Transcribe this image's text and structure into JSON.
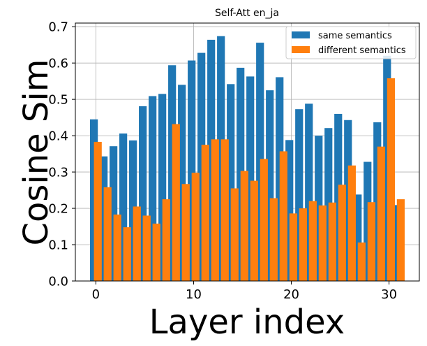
{
  "chart_data": {
    "type": "bar",
    "title": "Self-Att en_ja",
    "xlabel": "Layer index",
    "ylabel": "Cosine Sim",
    "x": [
      0,
      1,
      2,
      3,
      4,
      5,
      6,
      7,
      8,
      9,
      10,
      11,
      12,
      13,
      14,
      15,
      16,
      17,
      18,
      19,
      20,
      21,
      22,
      23,
      24,
      25,
      26,
      27,
      28,
      29,
      30,
      31
    ],
    "xlim": [
      -2.1,
      33.1
    ],
    "ylim": [
      0,
      0.71
    ],
    "xticks": [
      0,
      10,
      20,
      30
    ],
    "yticks": [
      0.0,
      0.1,
      0.2,
      0.3,
      0.4,
      0.5,
      0.6,
      0.7
    ],
    "grid": true,
    "legend_position": "top-right",
    "series": [
      {
        "name": "same semantics",
        "color": "#1f77b4",
        "offset": -0.2,
        "values": [
          0.445,
          0.343,
          0.371,
          0.406,
          0.387,
          0.481,
          0.509,
          0.515,
          0.594,
          0.54,
          0.607,
          0.628,
          0.664,
          0.674,
          0.542,
          0.587,
          0.563,
          0.656,
          0.525,
          0.561,
          0.388,
          0.473,
          0.488,
          0.4,
          0.421,
          0.46,
          0.443,
          0.238,
          0.328,
          0.437,
          0.62,
          0.209
        ]
      },
      {
        "name": "different semantics",
        "color": "#ff7f0e",
        "offset": 0.2,
        "values": [
          0.383,
          0.258,
          0.183,
          0.148,
          0.205,
          0.18,
          0.158,
          0.225,
          0.432,
          0.267,
          0.298,
          0.375,
          0.39,
          0.39,
          0.255,
          0.303,
          0.276,
          0.336,
          0.228,
          0.357,
          0.186,
          0.2,
          0.22,
          0.208,
          0.216,
          0.265,
          0.318,
          0.106,
          0.217,
          0.37,
          0.558,
          0.225
        ]
      }
    ]
  }
}
